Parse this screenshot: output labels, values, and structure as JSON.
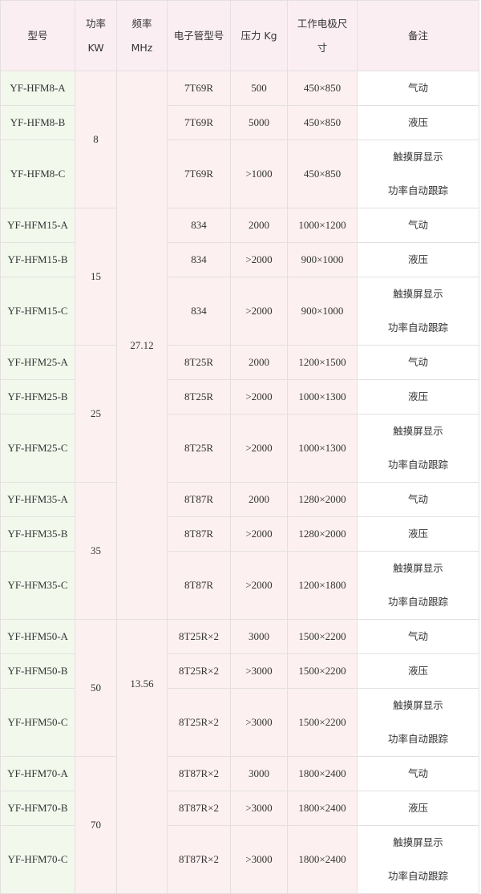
{
  "header": [
    [
      "型号"
    ],
    [
      "功率",
      "KW"
    ],
    [
      "频率",
      "MHz"
    ],
    [
      "电子管型号"
    ],
    [
      "压力 Kg"
    ],
    [
      "工作电极尺",
      "寸"
    ],
    [
      "备注"
    ]
  ],
  "frequency": [
    "27.12",
    "13.56"
  ],
  "groups": [
    {
      "power": "8",
      "rows": [
        {
          "model": "YF-HFM8-A",
          "tube": "7T69R",
          "pressure": "500",
          "size": "450×850",
          "remark": [
            "气动"
          ]
        },
        {
          "model": "YF-HFM8-B",
          "tube": "7T69R",
          "pressure": "5000",
          "size": "450×850",
          "remark": [
            "液压"
          ]
        },
        {
          "model": "YF-HFM8-C",
          "tube": "7T69R",
          "pressure": ">1000",
          "size": "450×850",
          "remark": [
            "触摸屏显示",
            "功率自动跟踪"
          ]
        }
      ]
    },
    {
      "power": "15",
      "rows": [
        {
          "model": "YF-HFM15-A",
          "tube": "834",
          "pressure": "2000",
          "size": "1000×1200",
          "remark": [
            "气动"
          ]
        },
        {
          "model": "YF-HFM15-B",
          "tube": "834",
          "pressure": ">2000",
          "size": "900×1000",
          "remark": [
            "液压"
          ]
        },
        {
          "model": "YF-HFM15-C",
          "tube": "834",
          "pressure": ">2000",
          "size": "900×1000",
          "remark": [
            "触摸屏显示",
            "功率自动跟踪"
          ]
        }
      ]
    },
    {
      "power": "25",
      "rows": [
        {
          "model": "YF-HFM25-A",
          "tube": "8T25R",
          "pressure": "2000",
          "size": "1200×1500",
          "remark": [
            "气动"
          ]
        },
        {
          "model": "YF-HFM25-B",
          "tube": "8T25R",
          "pressure": ">2000",
          "size": "1000×1300",
          "remark": [
            "液压"
          ]
        },
        {
          "model": "YF-HFM25-C",
          "tube": "8T25R",
          "pressure": ">2000",
          "size": "1000×1300",
          "remark": [
            "触摸屏显示",
            "功率自动跟踪"
          ]
        }
      ]
    },
    {
      "power": "35",
      "rows": [
        {
          "model": "YF-HFM35-A",
          "tube": "8T87R",
          "pressure": "2000",
          "size": "1280×2000",
          "remark": [
            "气动"
          ]
        },
        {
          "model": "YF-HFM35-B",
          "tube": "8T87R",
          "pressure": ">2000",
          "size": "1280×2000",
          "remark": [
            "液压"
          ]
        },
        {
          "model": "YF-HFM35-C",
          "tube": "8T87R",
          "pressure": ">2000",
          "size": "1200×1800",
          "remark": [
            "触摸屏显示",
            "功率自动跟踪"
          ]
        }
      ]
    },
    {
      "power": "50",
      "rows": [
        {
          "model": "YF-HFM50-A",
          "tube": "8T25R×2",
          "pressure": "3000",
          "size": "1500×2200",
          "remark": [
            "气动"
          ]
        },
        {
          "model": "YF-HFM50-B",
          "tube": "8T25R×2",
          "pressure": ">3000",
          "size": "1500×2200",
          "remark": [
            "液压"
          ]
        },
        {
          "model": "YF-HFM50-C",
          "tube": "8T25R×2",
          "pressure": ">3000",
          "size": "1500×2200",
          "remark": [
            "触摸屏显示",
            "功率自动跟踪"
          ]
        }
      ]
    },
    {
      "power": "70",
      "rows": [
        {
          "model": "YF-HFM70-A",
          "tube": "8T87R×2",
          "pressure": "3000",
          "size": "1800×2400",
          "remark": [
            "气动"
          ]
        },
        {
          "model": "YF-HFM70-B",
          "tube": "8T87R×2",
          "pressure": ">3000",
          "size": "1800×2400",
          "remark": [
            "液压"
          ]
        },
        {
          "model": "YF-HFM70-C",
          "tube": "8T87R×2",
          "pressure": ">3000",
          "size": "1800×2400",
          "remark": [
            "触摸屏显示",
            "功率自动跟踪"
          ]
        }
      ]
    }
  ]
}
